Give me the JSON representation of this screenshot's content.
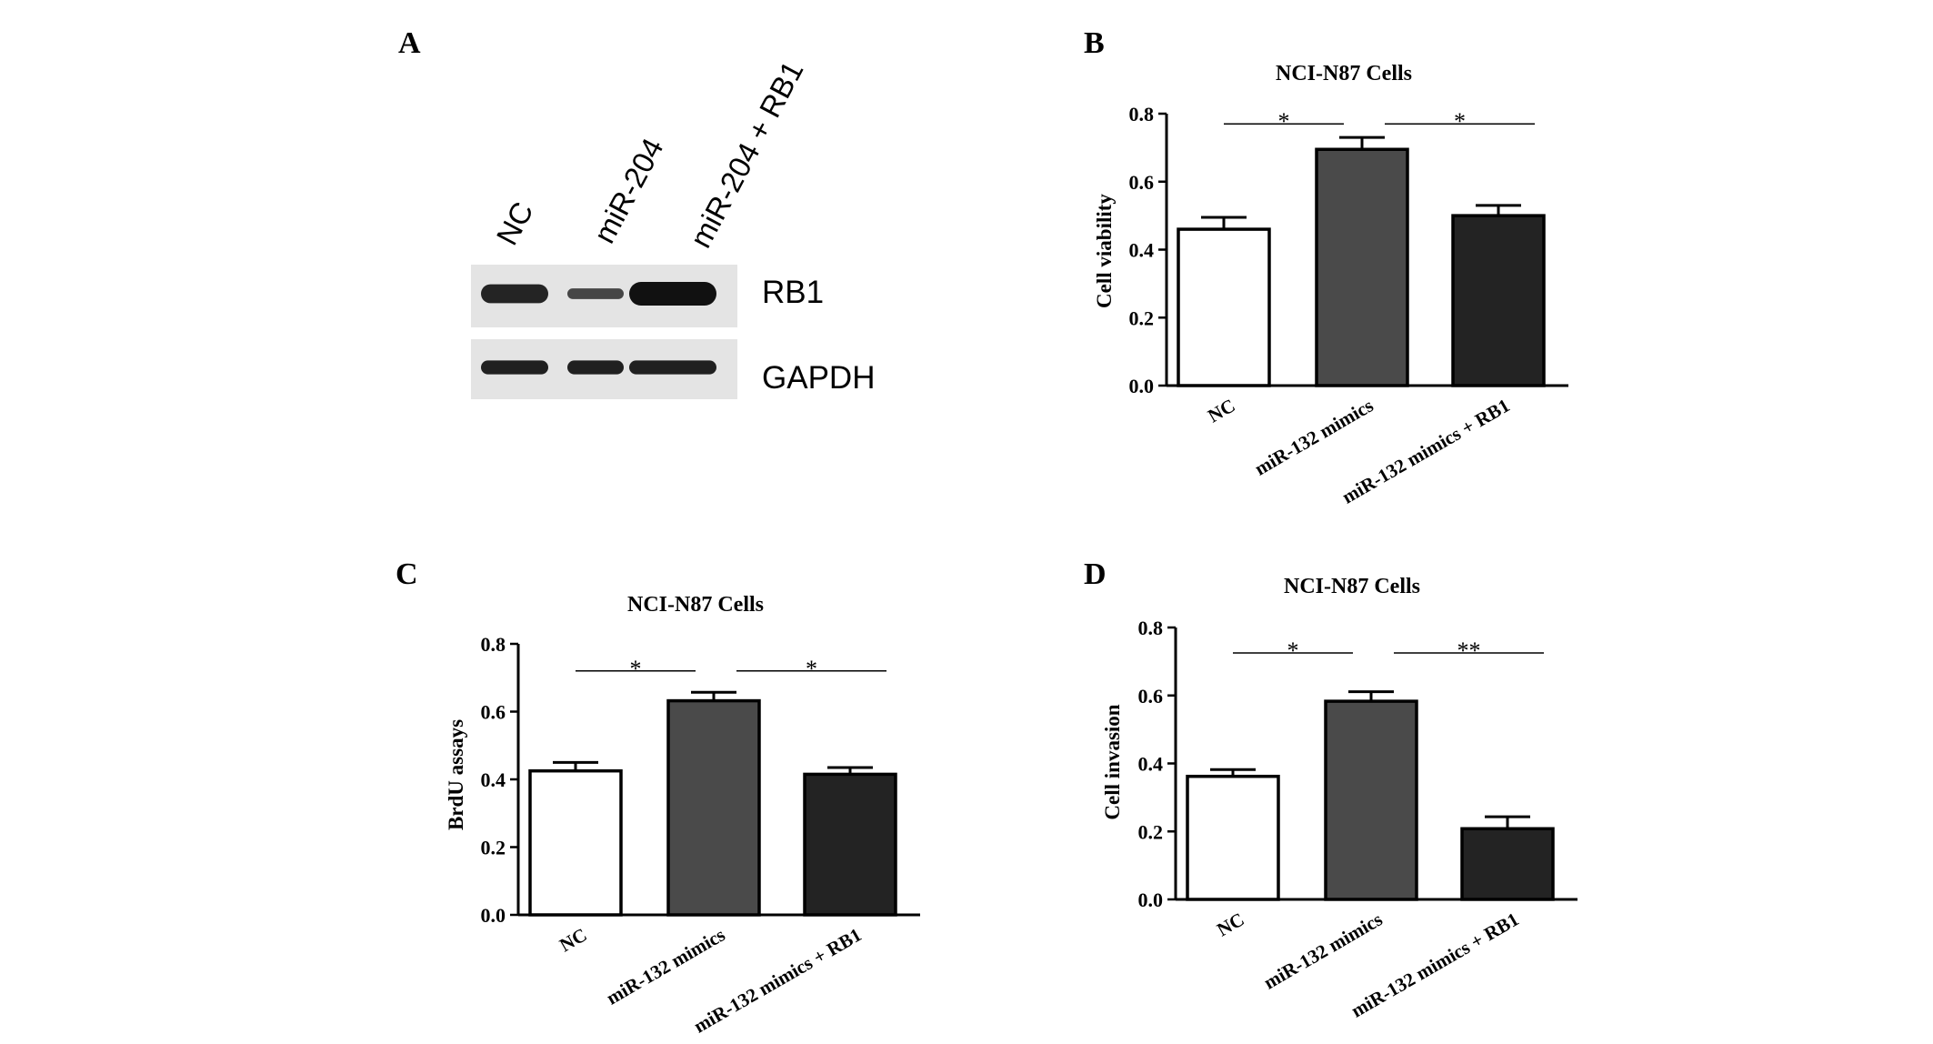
{
  "colors": {
    "background": "#ffffff",
    "ink": "#000000",
    "bar_nc": "#ffffff",
    "bar_mimics": "#4a4a4a",
    "bar_mimics_rb1": "#232323",
    "blot_background": "#e4e4e4",
    "blot_band": "#111111"
  },
  "panel_a": {
    "panel_label": "A",
    "lane_labels": [
      "NC",
      "miR-204",
      "miR-204 + RB1"
    ],
    "row_labels": [
      "RB1",
      "GAPDH"
    ],
    "band_intensity": {
      "RB1": [
        0.8,
        0.45,
        1.0
      ],
      "GAPDH": [
        0.85,
        0.85,
        0.85
      ]
    }
  },
  "chart_data": [
    {
      "panel": "B",
      "type": "bar",
      "title": "NCI-N87 Cells",
      "xlabel": "",
      "ylabel": "Cell viability",
      "ylim": [
        0,
        0.8
      ],
      "yticks": [
        "0.0",
        "0.2",
        "0.4",
        "0.6",
        "0.8"
      ],
      "categories": [
        "NC",
        "miR-132 mimics",
        "miR-132 mimics + RB1"
      ],
      "values": [
        0.46,
        0.695,
        0.5
      ],
      "errors": [
        0.035,
        0.035,
        0.03
      ],
      "significance": [
        {
          "from": 0,
          "to": 1,
          "y": 0.77,
          "label": "*"
        },
        {
          "from": 1,
          "to": 2,
          "y": 0.77,
          "label": "*"
        }
      ],
      "grid": false,
      "legend": "none"
    },
    {
      "panel": "C",
      "type": "bar",
      "title": "NCI-N87 Cells",
      "xlabel": "",
      "ylabel": "BrdU assays",
      "ylim": [
        0,
        0.8
      ],
      "yticks": [
        "0.0",
        "0.2",
        "0.4",
        "0.6",
        "0.8"
      ],
      "categories": [
        "NC",
        "miR-132 mimics",
        "miR-132 mimics + RB1"
      ],
      "values": [
        0.425,
        0.632,
        0.415
      ],
      "errors": [
        0.025,
        0.025,
        0.02
      ],
      "significance": [
        {
          "from": 0,
          "to": 1,
          "y": 0.72,
          "label": "*"
        },
        {
          "from": 1,
          "to": 2,
          "y": 0.72,
          "label": "*"
        }
      ],
      "grid": false,
      "legend": "none"
    },
    {
      "panel": "D",
      "type": "bar",
      "title": "NCI-N87 Cells",
      "xlabel": "",
      "ylabel": "Cell invasion",
      "ylim": [
        0,
        0.8
      ],
      "yticks": [
        "0.0",
        "0.2",
        "0.4",
        "0.6",
        "0.8"
      ],
      "categories": [
        "NC",
        "miR-132 mimics",
        "miR-132 mimics + RB1"
      ],
      "values": [
        0.362,
        0.583,
        0.208
      ],
      "errors": [
        0.02,
        0.028,
        0.035
      ],
      "significance": [
        {
          "from": 0,
          "to": 1,
          "y": 0.725,
          "label": "*"
        },
        {
          "from": 1,
          "to": 2,
          "y": 0.725,
          "label": "**"
        }
      ],
      "grid": false,
      "legend": "none"
    }
  ]
}
